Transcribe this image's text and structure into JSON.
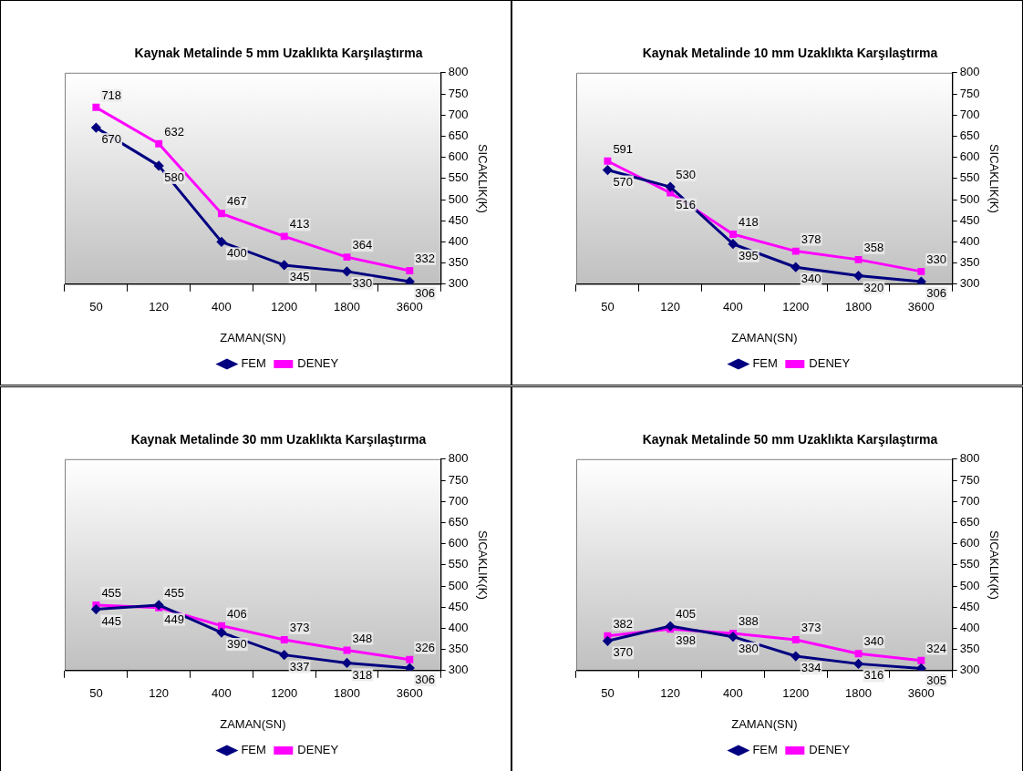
{
  "chart_data": [
    {
      "type": "line",
      "title": "Kaynak Metalinde 5 mm Uzaklıkta Karşılaştırma",
      "xlabel": "ZAMAN(SN)",
      "ylabel": "SICAKLIK(K)",
      "categories": [
        "50",
        "120",
        "400",
        "1200",
        "1800",
        "3600"
      ],
      "ylim": [
        300,
        800
      ],
      "yticks": [
        300,
        350,
        400,
        450,
        500,
        550,
        600,
        650,
        700,
        750,
        800
      ],
      "grid": false,
      "legend": "bottom",
      "data_labels": true,
      "series": [
        {
          "name": "FEM",
          "color": "#000080",
          "marker": "diamond",
          "values": [
            670,
            580,
            400,
            345,
            330,
            306
          ]
        },
        {
          "name": "DENEY",
          "color": "#ff00ff",
          "marker": "square",
          "values": [
            718,
            632,
            467,
            413,
            364,
            332
          ]
        }
      ]
    },
    {
      "type": "line",
      "title": "Kaynak Metalinde 10 mm Uzaklıkta Karşılaştırma",
      "xlabel": "ZAMAN(SN)",
      "ylabel": "SICAKLIK(K)",
      "categories": [
        "50",
        "120",
        "400",
        "1200",
        "1800",
        "3600"
      ],
      "ylim": [
        300,
        800
      ],
      "yticks": [
        300,
        350,
        400,
        450,
        500,
        550,
        600,
        650,
        700,
        750,
        800
      ],
      "grid": false,
      "legend": "bottom",
      "data_labels": true,
      "series": [
        {
          "name": "FEM",
          "color": "#000080",
          "marker": "diamond",
          "values": [
            570,
            530,
            395,
            340,
            320,
            306
          ]
        },
        {
          "name": "DENEY",
          "color": "#ff00ff",
          "marker": "square",
          "values": [
            591,
            516,
            418,
            378,
            358,
            330
          ]
        }
      ]
    },
    {
      "type": "line",
      "title": "Kaynak Metalinde 30 mm Uzaklıkta Karşılaştırma",
      "xlabel": "ZAMAN(SN)",
      "ylabel": "SICAKLIK(K)",
      "categories": [
        "50",
        "120",
        "400",
        "1200",
        "1800",
        "3600"
      ],
      "ylim": [
        300,
        800
      ],
      "yticks": [
        300,
        350,
        400,
        450,
        500,
        550,
        600,
        650,
        700,
        750,
        800
      ],
      "grid": false,
      "legend": "bottom",
      "data_labels": true,
      "series": [
        {
          "name": "FEM",
          "color": "#000080",
          "marker": "diamond",
          "values": [
            445,
            455,
            390,
            337,
            318,
            306
          ]
        },
        {
          "name": "DENEY",
          "color": "#ff00ff",
          "marker": "square",
          "values": [
            455,
            449,
            406,
            373,
            348,
            326
          ]
        }
      ]
    },
    {
      "type": "line",
      "title": "Kaynak Metalinde 50 mm Uzaklıkta Karşılaştırma",
      "xlabel": "ZAMAN(SN)",
      "ylabel": "SICAKLIK(K)",
      "categories": [
        "50",
        "120",
        "400",
        "1200",
        "1800",
        "3600"
      ],
      "ylim": [
        300,
        800
      ],
      "yticks": [
        300,
        350,
        400,
        450,
        500,
        550,
        600,
        650,
        700,
        750,
        800
      ],
      "grid": false,
      "legend": "bottom",
      "data_labels": true,
      "series": [
        {
          "name": "FEM",
          "color": "#000080",
          "marker": "diamond",
          "values": [
            370,
            405,
            380,
            334,
            316,
            305
          ]
        },
        {
          "name": "DENEY",
          "color": "#ff00ff",
          "marker": "square",
          "values": [
            382,
            398,
            388,
            373,
            340,
            324
          ]
        }
      ]
    }
  ]
}
